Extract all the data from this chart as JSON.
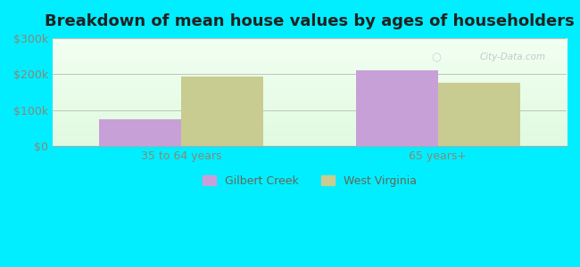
{
  "title": "Breakdown of mean house values by ages of householders",
  "categories": [
    "35 to 64 years",
    "65 years+"
  ],
  "gilbert_creek": [
    75000,
    210000
  ],
  "west_virginia": [
    192000,
    175000
  ],
  "gilbert_creek_color": "#c8a0d8",
  "west_virginia_color": "#c8cc90",
  "background_color": "#00eeff",
  "ylim": [
    0,
    300000
  ],
  "yticks": [
    0,
    100000,
    200000,
    300000
  ],
  "ytick_labels": [
    "$0",
    "$100k",
    "$200k",
    "$300k"
  ],
  "legend_labels": [
    "Gilbert Creek",
    "West Virginia"
  ],
  "watermark": "City-Data.com",
  "bar_width": 0.32,
  "title_fontsize": 13,
  "tick_fontsize": 9,
  "legend_fontsize": 9
}
